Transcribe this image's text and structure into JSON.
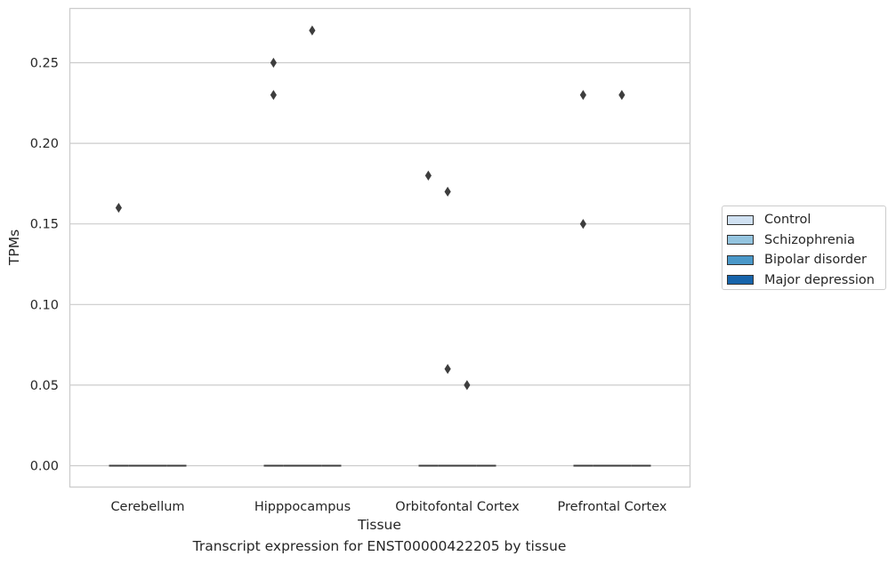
{
  "chart_data": {
    "type": "boxplot",
    "caption": "Transcript expression for ENST00000422205 by tissue",
    "xlabel": "Tissue",
    "ylabel": "TPMs",
    "ylim": [
      -0.013,
      0.284
    ],
    "yticks": [
      "0.00",
      "0.05",
      "0.10",
      "0.15",
      "0.20",
      "0.25"
    ],
    "ytick_values": [
      0,
      0.05,
      0.1,
      0.15,
      0.2,
      0.25
    ],
    "grid": true,
    "legend_position": "right",
    "categories": [
      "Cerebellum",
      "Hipppocampus",
      "Orbitofontal Cortex",
      "Prefrontal Cortex"
    ],
    "series": [
      {
        "name": "Control",
        "color": "#d0e1f2",
        "median": [
          0,
          0,
          0,
          0
        ],
        "outliers": [
          [
            0.16
          ],
          [
            0.25,
            0.23
          ],
          [
            0.18
          ],
          [
            0.23,
            0.15
          ]
        ]
      },
      {
        "name": "Schizophrenia",
        "color": "#94c4df",
        "median": [
          0,
          0,
          0,
          0
        ],
        "outliers": [
          [],
          [],
          [
            0.17,
            0.06
          ],
          []
        ]
      },
      {
        "name": "Bipolar disorder",
        "color": "#4a98c9",
        "median": [
          0,
          0,
          0,
          0
        ],
        "outliers": [
          [],
          [
            0.27
          ],
          [
            0.05
          ],
          [
            0.23
          ]
        ]
      },
      {
        "name": "Major depression",
        "color": "#1764ab",
        "median": [
          0,
          0,
          0,
          0
        ],
        "outliers": [
          [],
          [],
          [],
          []
        ]
      }
    ]
  }
}
